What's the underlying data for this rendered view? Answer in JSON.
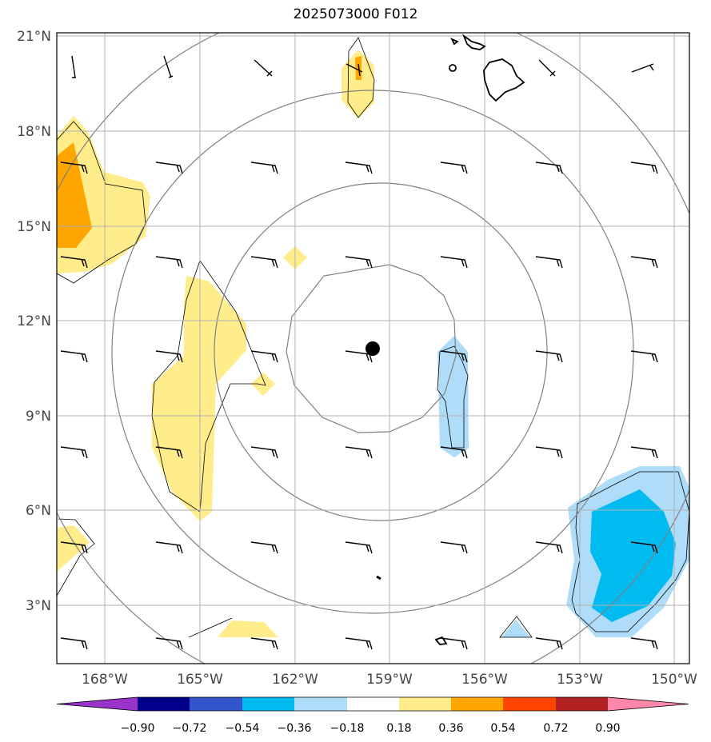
{
  "title": "2025073000 F012",
  "map": {
    "lat_ticks": [
      "21°N",
      "18°N",
      "15°N",
      "12°N",
      "9°N",
      "6°N",
      "3°N"
    ],
    "lon_ticks": [
      "168°W",
      "165°W",
      "162°W",
      "159°W",
      "156°W",
      "153°W",
      "150°W"
    ],
    "lat_values": [
      21,
      18,
      15,
      12,
      9,
      6,
      3
    ],
    "lon_values": [
      -168,
      -165,
      -162,
      -159,
      -156,
      -153,
      -150
    ],
    "center": {
      "lon": -159.5,
      "lat": 11.1
    },
    "grid": true,
    "range_rings": true
  },
  "colorbar": {
    "tick_labels": [
      "−0.90",
      "−0.72",
      "−0.54",
      "−0.36",
      "−0.18",
      "0.18",
      "0.36",
      "0.54",
      "0.72",
      "0.90"
    ],
    "bins": [
      "#9933cc",
      "#00008b",
      "#3355cc",
      "#00bbf0",
      "#aedcf9",
      "#ffffff",
      "#ffec8b",
      "#ffa500",
      "#ff4500",
      "#b22222",
      "#ff88aa"
    ]
  },
  "colors": {
    "pos_low": "#ffec8b",
    "pos_mid": "#ffa500",
    "neg_low": "#aedcf9",
    "neg_mid": "#00bbf0"
  }
}
